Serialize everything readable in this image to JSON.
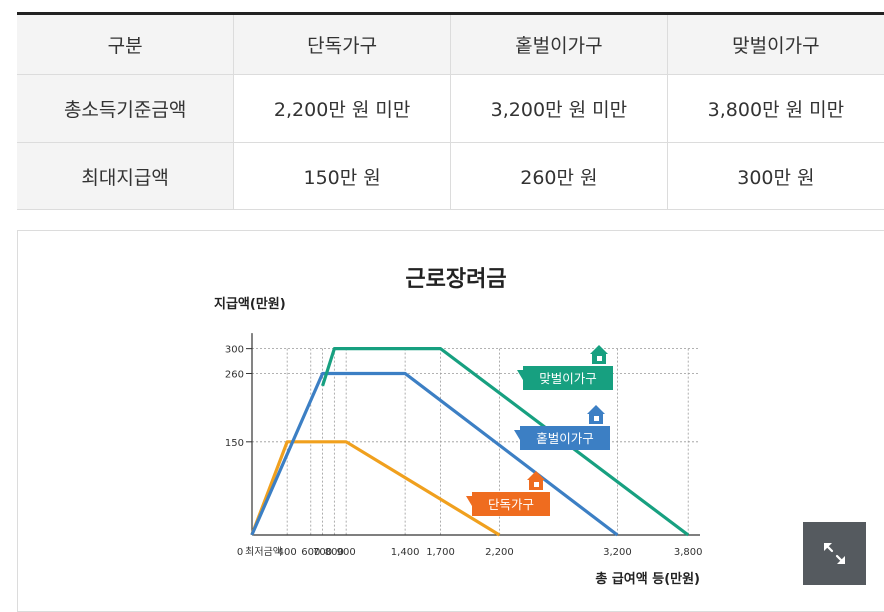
{
  "table": {
    "headers": [
      "구분",
      "단독가구",
      "홑벌이가구",
      "맞벌이가구"
    ],
    "rows": [
      {
        "label": "총소득기준금액",
        "values": [
          "2,200만 원 미만",
          "3,200만 원 미만",
          "3,800만 원 미만"
        ]
      },
      {
        "label": "최대지급액",
        "values": [
          "150만 원",
          "260만 원",
          "300만 원"
        ]
      }
    ]
  },
  "chart_data": {
    "type": "line",
    "title": "근로장려금",
    "ylabel": "지급액(만원)",
    "xlabel": "총 급여액 등(만원)",
    "xlim": [
      0,
      3900
    ],
    "ylim": [
      0,
      330
    ],
    "x_ticks": [
      {
        "value": 0,
        "label": "0"
      },
      {
        "value": 200,
        "label": "최저금액"
      },
      {
        "value": 400,
        "label": "400"
      },
      {
        "value": 600,
        "label": "600"
      },
      {
        "value": 700,
        "label": "700"
      },
      {
        "value": 800,
        "label": "800"
      },
      {
        "value": 900,
        "label": "900"
      },
      {
        "value": 1400,
        "label": "1,400"
      },
      {
        "value": 1700,
        "label": "1,700"
      },
      {
        "value": 2200,
        "label": "2,200"
      },
      {
        "value": 3200,
        "label": "3,200"
      },
      {
        "value": 3800,
        "label": "3,800"
      }
    ],
    "y_ticks": [
      {
        "value": 150,
        "label": "150"
      },
      {
        "value": 260,
        "label": "260"
      },
      {
        "value": 300,
        "label": "300"
      }
    ],
    "series": [
      {
        "name": "단독가구",
        "color": "#f0a01e",
        "label_color": "#ef6c1f",
        "x": [
          100,
          400,
          900,
          2200
        ],
        "y": [
          0,
          150,
          150,
          0
        ]
      },
      {
        "name": "홑벌이가구",
        "color": "#3c7fc4",
        "label_color": "#3c7fc4",
        "x": [
          100,
          700,
          1400,
          3200
        ],
        "y": [
          0,
          260,
          260,
          0
        ]
      },
      {
        "name": "맞벌이가구",
        "color": "#17a080",
        "label_color": "#17a080",
        "x": [
          700,
          800,
          1700,
          3800
        ],
        "y": [
          240,
          300,
          300,
          0
        ]
      }
    ]
  },
  "controls": {
    "expand_icon": "expand-arrows-icon"
  }
}
